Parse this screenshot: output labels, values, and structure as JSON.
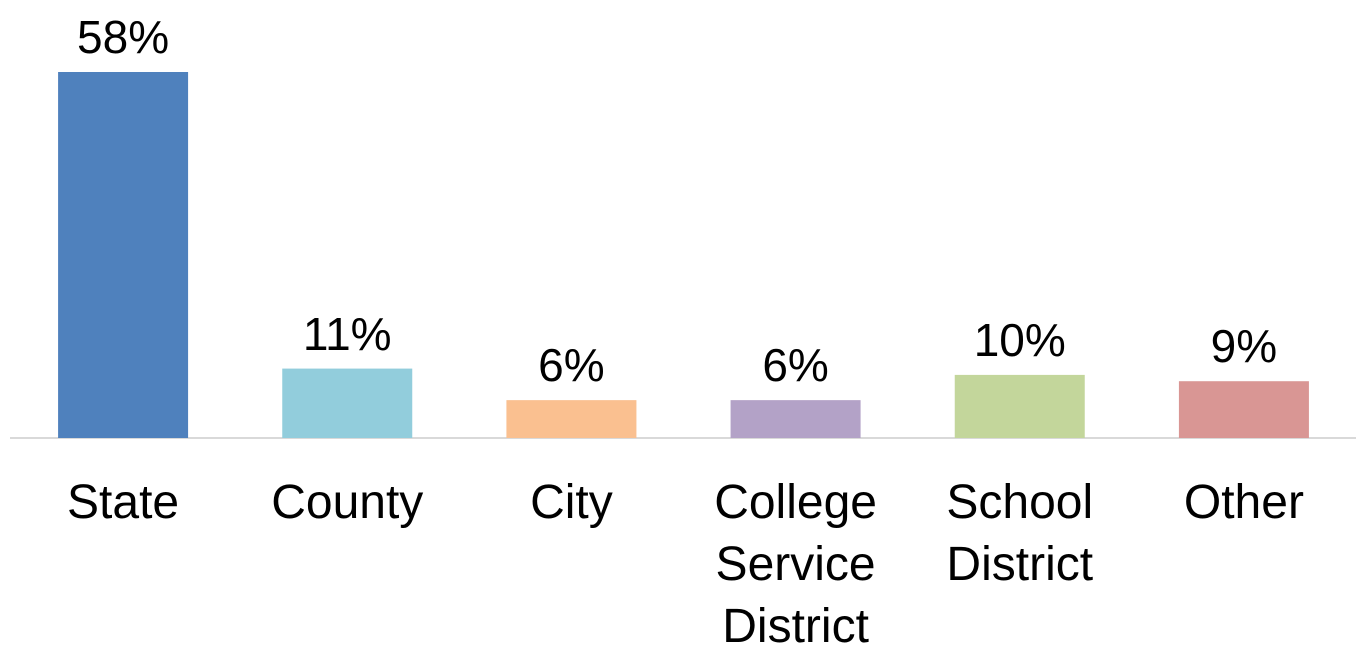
{
  "chart_data": {
    "type": "bar",
    "categories": [
      "State",
      "County",
      "City",
      "College Service District",
      "School District",
      "Other"
    ],
    "values": [
      58,
      11,
      6,
      6,
      10,
      9
    ],
    "value_labels": [
      "58%",
      "11%",
      "6%",
      "6%",
      "10%",
      "9%"
    ],
    "colors": [
      "#4f81bd",
      "#92cddc",
      "#fac090",
      "#b3a2c7",
      "#c3d69b",
      "#d99694"
    ]
  }
}
